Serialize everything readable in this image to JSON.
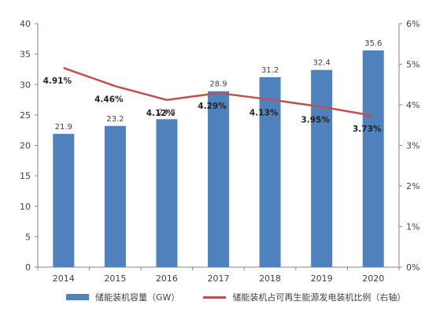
{
  "chart_data": {
    "type": "bar+line",
    "categories": [
      "2014",
      "2015",
      "2016",
      "2017",
      "2018",
      "2019",
      "2020"
    ],
    "series": [
      {
        "name": "储能装机容量（GW）",
        "type": "bar",
        "axis": "left",
        "values": [
          21.9,
          23.2,
          24.3,
          28.9,
          31.2,
          32.4,
          35.6
        ],
        "labels": [
          "21.9",
          "23.2",
          "24.3",
          "28.9",
          "31.2",
          "32.4",
          "35.6"
        ]
      },
      {
        "name": "储能装机占可再生能源发电装机比例（右轴）",
        "type": "line",
        "axis": "right",
        "values": [
          4.91,
          4.46,
          4.12,
          4.29,
          4.13,
          3.95,
          3.73
        ],
        "labels": [
          "4.91%",
          "4.46%",
          "4.12%",
          "4.29%",
          "4.13%",
          "3.95%",
          "3.73%"
        ]
      }
    ],
    "y_left": {
      "ylim": [
        0,
        40
      ],
      "ticks": [
        "0",
        "5",
        "10",
        "15",
        "20",
        "25",
        "30",
        "35",
        "40"
      ]
    },
    "y_right": {
      "ylim": [
        0,
        6
      ],
      "ticks": [
        "0%",
        "1%",
        "2%",
        "3%",
        "4%",
        "5%",
        "6%"
      ]
    },
    "grid": false,
    "legend_position": "bottom",
    "colors": {
      "bar": "#4f81bd",
      "line": "#c0504d"
    }
  }
}
